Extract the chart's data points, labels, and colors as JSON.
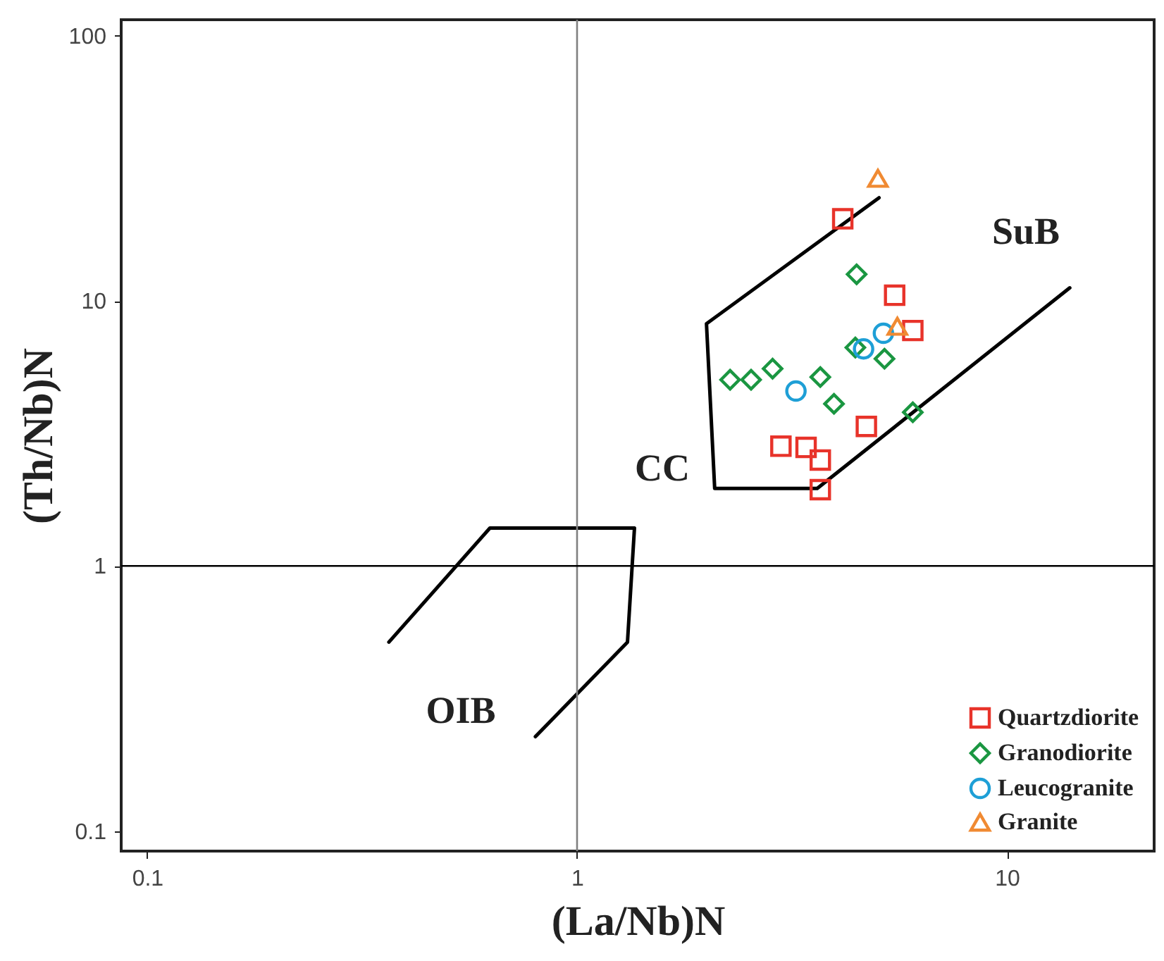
{
  "chart_data": {
    "type": "scatter",
    "xlabel": "(La/Nb)N",
    "ylabel": "(Th/Nb)N",
    "log": "xy",
    "grid": false,
    "legend": "bottom right",
    "xlim": [
      0.087,
      22
    ],
    "xticks": [
      0.1,
      1,
      10
    ],
    "ylim": [
      0.084,
      115
    ],
    "yticks": [
      0.1,
      1,
      10,
      100
    ],
    "ref_lines": [
      {
        "axis": "x",
        "value": 1,
        "color": "#808080"
      },
      {
        "axis": "y",
        "value": 1,
        "color": "#000000"
      }
    ],
    "annotations": [
      "CC",
      "SuB",
      "OIB"
    ],
    "series": [
      {
        "type": "line",
        "color": "#000000",
        "x": [
          5.04,
          2.0,
          2.09,
          3.62,
          14.0
        ],
        "values": [
          24.5,
          8.2,
          1.96,
          1.96,
          11.2
        ]
      },
      {
        "type": "line",
        "color": "#000000",
        "x": [
          0.365,
          0.627,
          1.36,
          1.31,
          0.8
        ],
        "values": [
          0.516,
          1.39,
          1.39,
          0.516,
          0.227
        ]
      },
      {
        "name": "Quartzdiorite",
        "color": "#e8332a",
        "marker": "square",
        "x": [
          4.15,
          5.48,
          6.04,
          4.71,
          2.98,
          3.41,
          3.68,
          3.68
        ],
        "values": [
          20.4,
          10.5,
          7.73,
          3.36,
          2.83,
          2.8,
          2.51,
          1.94
        ]
      },
      {
        "name": "Granodiorite",
        "color": "#1a9641",
        "marker": "diamond",
        "x": [
          4.47,
          4.44,
          5.19,
          2.27,
          2.54,
          2.85,
          3.68,
          3.96,
          6.04
        ],
        "values": [
          12.6,
          6.67,
          6.05,
          5.04,
          5.04,
          5.55,
          5.16,
          4.09,
          3.8
        ]
      },
      {
        "name": "Leucogranite",
        "color": "#1e9fd6",
        "marker": "circle",
        "x": [
          5.16,
          4.64,
          3.23
        ],
        "values": [
          7.55,
          6.59,
          4.57
        ]
      },
      {
        "name": "Granite",
        "color": "#f08a32",
        "marker": "triangle",
        "x": [
          5.01,
          5.56
        ],
        "values": [
          29.0,
          8.02
        ]
      }
    ]
  }
}
